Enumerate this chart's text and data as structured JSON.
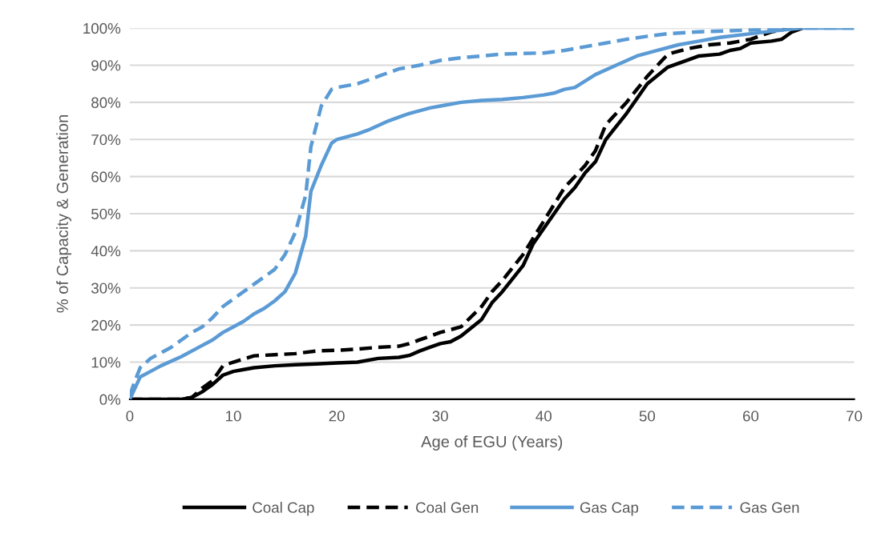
{
  "chart_data": {
    "type": "line",
    "xlabel": "Age of EGU (Years)",
    "ylabel": "% of Capacity & Generation",
    "xlim": [
      0,
      70
    ],
    "xticks": [
      0,
      10,
      20,
      30,
      40,
      50,
      60,
      70
    ],
    "ylim": [
      0,
      100
    ],
    "yticks": [
      {
        "value": 0,
        "label": "0%"
      },
      {
        "value": 10,
        "label": "10%"
      },
      {
        "value": 20,
        "label": "20%"
      },
      {
        "value": 30,
        "label": "30%"
      },
      {
        "value": 40,
        "label": "40%"
      },
      {
        "value": 50,
        "label": "50%"
      },
      {
        "value": 60,
        "label": "60%"
      },
      {
        "value": 70,
        "label": "70%"
      },
      {
        "value": 80,
        "label": "80%"
      },
      {
        "value": 90,
        "label": "90%"
      },
      {
        "value": 100,
        "label": "100%"
      }
    ],
    "grid": "y",
    "legend": "bottom",
    "marker": "none",
    "series": [
      {
        "name": "Coal Cap",
        "color": "#000000",
        "line_style": "solid",
        "x": [
          0,
          5,
          6,
          7,
          8,
          9,
          10,
          11,
          12,
          14,
          16,
          18,
          20,
          22,
          24,
          26,
          27,
          28,
          29,
          30,
          31,
          32,
          34,
          35,
          36,
          38,
          39,
          40,
          41,
          42,
          43,
          44,
          45,
          46,
          48,
          50,
          52,
          54,
          55,
          57,
          58,
          59,
          60,
          62,
          63,
          64,
          65
        ],
        "values": [
          0,
          0,
          0.5,
          2,
          4,
          6.5,
          7.5,
          8,
          8.5,
          9,
          9.3,
          9.5,
          9.8,
          10,
          11,
          11.3,
          11.8,
          13,
          14,
          15,
          15.5,
          17,
          21.5,
          26,
          29,
          36,
          42,
          46,
          50,
          54,
          57,
          61,
          64,
          70,
          77,
          85,
          89.5,
          91.5,
          92.5,
          93,
          94,
          94.5,
          96,
          96.5,
          97,
          99,
          100
        ]
      },
      {
        "name": "Coal Gen",
        "color": "#000000",
        "line_style": "dashed",
        "x": [
          0,
          5,
          6,
          7,
          8,
          9,
          10,
          12,
          14,
          16,
          18,
          20,
          22,
          24,
          26,
          27,
          28,
          29,
          30,
          32,
          34,
          35,
          36,
          38,
          40,
          42,
          43,
          44,
          45,
          46,
          48,
          50,
          52,
          54,
          56,
          58,
          60,
          62,
          64
        ],
        "values": [
          0,
          0,
          0.5,
          3,
          5,
          9,
          10,
          11.7,
          12,
          12.3,
          13,
          13.2,
          13.5,
          14,
          14.3,
          15,
          16,
          17,
          18,
          19.5,
          25,
          29,
          32,
          39,
          48,
          57,
          60,
          63,
          67,
          74,
          80,
          87,
          93,
          94.5,
          95.5,
          96,
          97,
          99,
          100
        ]
      },
      {
        "name": "Gas Cap",
        "color": "#5b9bd5",
        "line_style": "solid",
        "x": [
          0,
          1,
          2,
          3,
          5,
          7,
          8,
          9,
          10,
          11,
          12,
          13,
          14,
          15,
          16,
          17,
          17.5,
          18.5,
          19.5,
          20,
          22,
          23,
          25,
          26,
          27,
          29,
          30,
          32,
          34,
          36,
          38,
          40,
          41,
          42,
          43,
          45,
          47,
          49,
          51,
          53,
          55,
          57,
          60,
          63,
          65,
          70
        ],
        "values": [
          0,
          6,
          7.5,
          9,
          11.5,
          14.5,
          16,
          18,
          19.5,
          21,
          23,
          24.5,
          26.5,
          29,
          34,
          44,
          56,
          63,
          69,
          70,
          71.5,
          72.5,
          75,
          76,
          77,
          78.5,
          79,
          80,
          80.5,
          80.8,
          81.3,
          82,
          82.5,
          83.5,
          84,
          87.5,
          90,
          92.5,
          94,
          95.5,
          96.5,
          97.5,
          98.5,
          99.5,
          100,
          100
        ]
      },
      {
        "name": "Gas Gen",
        "color": "#5b9bd5",
        "line_style": "dashed",
        "x": [
          0,
          0.5,
          1,
          2,
          4,
          5,
          6,
          7,
          8,
          9,
          10,
          12,
          13,
          14,
          15,
          16,
          17,
          17.5,
          18.5,
          19.5,
          20,
          22,
          24,
          26,
          28,
          30,
          32,
          34,
          36,
          38,
          40,
          42,
          44,
          46,
          48,
          50,
          52,
          55,
          60,
          63,
          70
        ],
        "values": [
          1,
          5,
          8.5,
          11,
          14,
          16,
          18,
          19.5,
          22,
          25,
          27,
          31,
          33,
          35,
          39,
          45,
          55,
          68,
          79,
          83.5,
          84,
          85,
          87,
          89,
          90,
          91.3,
          92,
          92.5,
          93,
          93.2,
          93.3,
          94,
          95,
          96,
          97,
          97.8,
          98.5,
          99,
          99.5,
          100,
          100
        ]
      }
    ]
  }
}
